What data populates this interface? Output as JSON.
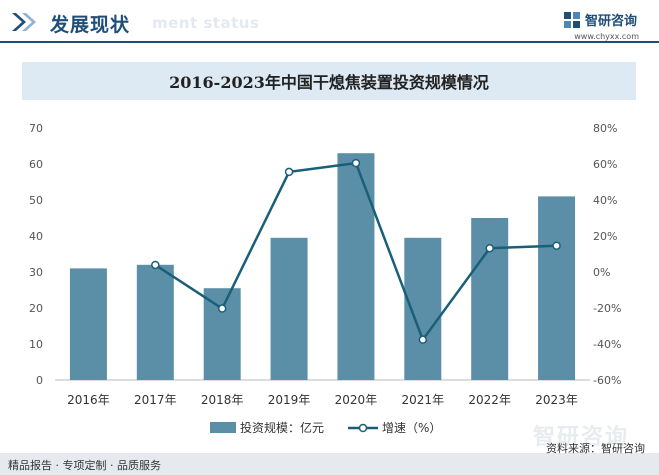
{
  "header": {
    "title": "发展现状",
    "subtitle": "ment status",
    "brand_name": "智研咨询",
    "brand_url": "www.chyxx.com"
  },
  "footer": {
    "left_text": "精品报告 · 专项定制 · 品质服务",
    "source_text": "资料来源：智研咨询",
    "watermark": "智研咨询"
  },
  "colors": {
    "bar": "#5b8fa8",
    "line": "#1a5f7a",
    "title_bg": "#dde9f3",
    "accent": "#1f4e79"
  },
  "chart_data": {
    "type": "bar",
    "title": "2016-2023年中国干熄焦装置投资规模情况",
    "categories": [
      "2016年",
      "2017年",
      "2018年",
      "2019年",
      "2020年",
      "2021年",
      "2022年",
      "2023年"
    ],
    "series": [
      {
        "name": "投资规模：亿元",
        "type": "bar",
        "axis": "left",
        "values": [
          31,
          32,
          25.5,
          39.5,
          63,
          39.5,
          45,
          51
        ]
      },
      {
        "name": "增速（%）",
        "type": "line",
        "axis": "right",
        "values": [
          null,
          3.9,
          -20.3,
          55.6,
          60.5,
          -37.6,
          13.2,
          14.6
        ]
      }
    ],
    "y_left": {
      "ylim": [
        0,
        70
      ],
      "ticks": [
        "0",
        "10",
        "20",
        "30",
        "40",
        "50",
        "60",
        "70"
      ]
    },
    "y_right": {
      "ylim": [
        -60,
        80
      ],
      "ticks": [
        "-60%",
        "-40%",
        "-20%",
        "0%",
        "20%",
        "40%",
        "60%",
        "80%"
      ]
    },
    "grid": false,
    "legend_position": "bottom-center"
  }
}
